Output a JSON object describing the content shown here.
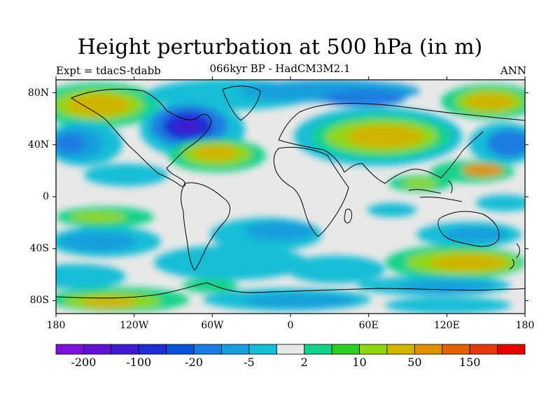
{
  "title": "Height perturbation at 500 hPa (in m)",
  "subtitle": "066kyr BP - HadCM3M2.1",
  "left_label": "Expt = tdacS-tdabb",
  "right_label": "ANN",
  "map": {
    "lon_range": [
      -180,
      180
    ],
    "lat_range": [
      -90,
      90
    ],
    "missing_color": "#e8e8e8",
    "lat_ticks": [
      {
        "value": 80,
        "label": "80N"
      },
      {
        "value": 40,
        "label": "40N"
      },
      {
        "value": 0,
        "label": "0"
      },
      {
        "value": -40,
        "label": "40S"
      },
      {
        "value": -80,
        "label": "80S"
      }
    ],
    "lon_ticks": [
      {
        "value": -180,
        "label": "180"
      },
      {
        "value": -120,
        "label": "120W"
      },
      {
        "value": -60,
        "label": "60W"
      },
      {
        "value": 0,
        "label": "0"
      },
      {
        "value": 60,
        "label": "60E"
      },
      {
        "value": 120,
        "label": "120E"
      },
      {
        "value": 180,
        "label": "180"
      }
    ]
  },
  "colorbar": {
    "colors": [
      "#7b12d8",
      "#5e12d2",
      "#3f1bd0",
      "#1f2ed4",
      "#0a52d6",
      "#1a7ce0",
      "#159fdc",
      "#15bdd6",
      "#e8e8e8",
      "#14d28a",
      "#2ecc1e",
      "#8fd714",
      "#cfb400",
      "#e09200",
      "#e06200",
      "#e23a10",
      "#e80000"
    ],
    "labels": [
      {
        "text": "-200",
        "edge": 1
      },
      {
        "text": "-100",
        "edge": 3
      },
      {
        "text": "-20",
        "edge": 5
      },
      {
        "text": "-5",
        "edge": 7
      },
      {
        "text": "2",
        "edge": 9
      },
      {
        "text": "10",
        "edge": 11
      },
      {
        "text": "50",
        "edge": 13
      },
      {
        "text": "150",
        "edge": 15
      }
    ]
  },
  "icons": {
    "map_canvas": "contour-map",
    "coastlines": "world-coastline"
  }
}
